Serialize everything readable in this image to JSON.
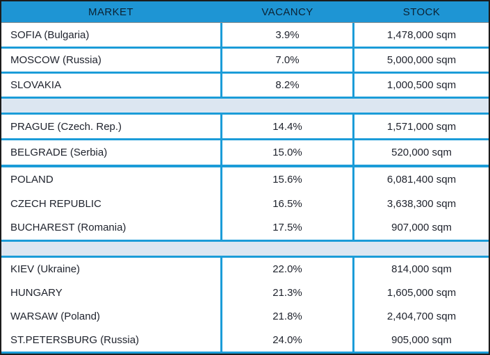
{
  "header": {
    "columns": [
      "MARKET",
      "VACANCY",
      "STOCK"
    ]
  },
  "rows": [
    {
      "market": "SOFIA (Bulgaria)",
      "vacancy": "3.9%",
      "stock": "1,478,000 sqm"
    },
    {
      "market": "MOSCOW (Russia)",
      "vacancy": "7.0%",
      "stock": "5,000,000 sqm"
    },
    {
      "market": "SLOVAKIA",
      "vacancy": "8.2%",
      "stock": "1,000,500 sqm"
    },
    {
      "market": "PRAGUE (Czech. Rep.)",
      "vacancy": "14.4%",
      "stock": "1,571,000 sqm"
    },
    {
      "market": "BELGRADE (Serbia)",
      "vacancy": "15.0%",
      "stock": "520,000 sqm"
    },
    {
      "market": "POLAND",
      "vacancy": "15.6%",
      "stock": "6,081,400 sqm"
    },
    {
      "market": "CZECH REPUBLIC",
      "vacancy": "16.5%",
      "stock": "3,638,300 sqm"
    },
    {
      "market": "BUCHAREST (Romania)",
      "vacancy": "17.5%",
      "stock": "907,000 sqm"
    },
    {
      "market": "KIEV (Ukraine)",
      "vacancy": "22.0%",
      "stock": "814,000 sqm"
    },
    {
      "market": "HUNGARY",
      "vacancy": "21.3%",
      "stock": "1,605,000 sqm"
    },
    {
      "market": "WARSAW (Poland)",
      "vacancy": "21.8%",
      "stock": "2,404,700 sqm"
    },
    {
      "market": "ST.PETERSBURG (Russia)",
      "vacancy": "24.0%",
      "stock": "905,000 sqm"
    }
  ],
  "chart_data": {
    "type": "table",
    "title": "",
    "columns": [
      "MARKET",
      "VACANCY",
      "STOCK"
    ],
    "rows": [
      [
        "SOFIA (Bulgaria)",
        "3.9%",
        "1,478,000 sqm"
      ],
      [
        "MOSCOW (Russia)",
        "7.0%",
        "5,000,000 sqm"
      ],
      [
        "SLOVAKIA",
        "8.2%",
        "1,000,500 sqm"
      ],
      [
        "PRAGUE (Czech. Rep.)",
        "14.4%",
        "1,571,000 sqm"
      ],
      [
        "BELGRADE (Serbia)",
        "15.0%",
        "520,000 sqm"
      ],
      [
        "POLAND",
        "15.6%",
        "6,081,400 sqm"
      ],
      [
        "CZECH REPUBLIC",
        "16.5%",
        "3,638,300 sqm"
      ],
      [
        "BUCHAREST (Romania)",
        "17.5%",
        "907,000 sqm"
      ],
      [
        "KIEV (Ukraine)",
        "22.0%",
        "814,000 sqm"
      ],
      [
        "HUNGARY",
        "21.3%",
        "1,605,000 sqm"
      ],
      [
        "WARSAW (Poland)",
        "21.8%",
        "2,404,700 sqm"
      ],
      [
        "ST.PETERSBURG (Russia)",
        "24.0%",
        "905,000 sqm"
      ]
    ],
    "vacancy_percent": [
      3.9,
      7.0,
      8.2,
      14.4,
      15.0,
      15.6,
      16.5,
      17.5,
      22.0,
      21.3,
      21.8,
      24.0
    ],
    "stock_sqm": [
      1478000,
      5000000,
      1000500,
      1571000,
      520000,
      6081400,
      3638300,
      907000,
      814000,
      1605000,
      2404700,
      905000
    ],
    "group_breaks_after_row": [
      2,
      7
    ],
    "legend_position": "none",
    "grid": true
  },
  "colors": {
    "header_fill": "#1e95d4",
    "grid_line_blue": "#1b9cd8",
    "separator_fill": "#dce6f1",
    "outer_border": "#1c1c1c",
    "header_text": "#0b2233",
    "body_text": "#20242e"
  }
}
